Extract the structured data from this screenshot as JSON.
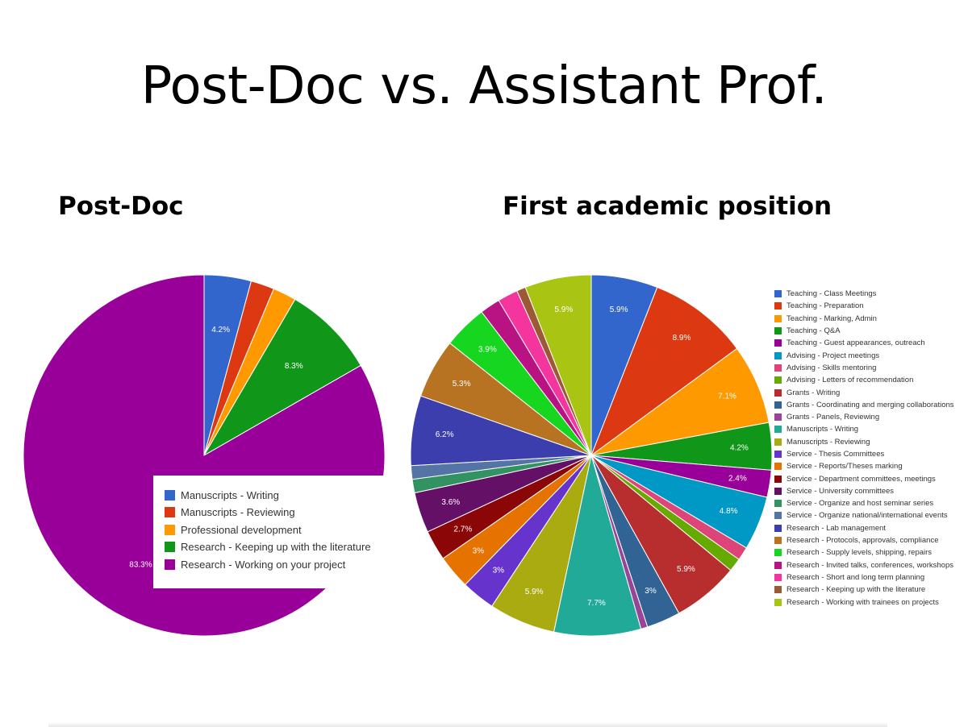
{
  "slide": {
    "title": "Post-Doc vs. Assistant Prof."
  },
  "chart_data": [
    {
      "type": "pie",
      "title": "Post-Doc",
      "legend_position": "bottom-right",
      "labels": [
        "Manuscripts - Writing",
        "Manuscripts - Reviewing",
        "Professional development",
        "Research - Keeping up with the literature",
        "Research - Working on your project"
      ],
      "values": [
        4.2,
        2.1,
        2.1,
        8.3,
        83.3
      ],
      "data_labels": [
        "4.2%",
        "",
        "",
        "8.3%",
        "83.3%"
      ],
      "colors": [
        "#3366cc",
        "#dc3912",
        "#ff9900",
        "#109618",
        "#990099"
      ]
    },
    {
      "type": "pie",
      "title": "First academic position",
      "legend_position": "right",
      "labels": [
        "Teaching - Class Meetings",
        "Teaching - Preparation",
        "Teaching - Marking, Admin",
        "Teaching - Q&A",
        "Teaching - Guest appearances, outreach",
        "Advising - Project meetings",
        "Advising - Skills mentoring",
        "Advising - Letters of recommendation",
        "Grants - Writing",
        "Grants - Coordinating and merging collaborations",
        "Grants - Panels, Reviewing",
        "Manuscripts - Writing",
        "Manuscripts - Reviewing",
        "Service - Thesis Committees",
        "Service - Reports/Theses marking",
        "Service - Department committees, meetings",
        "Service - University committees",
        "Service - Organize and host seminar series",
        "Service - Organize national/international events",
        "Research - Lab management",
        "Research - Protocols, approvals, compliance",
        "Research - Supply levels, shipping, repairs",
        "Research - Invited talks, conferences, workshops",
        "Research - Short and long term planning",
        "Research - Keeping up with the literature",
        "Research - Working with trainees on projects"
      ],
      "values": [
        5.9,
        8.9,
        7.1,
        4.2,
        2.4,
        4.8,
        1.2,
        1.2,
        5.9,
        3.0,
        0.6,
        7.7,
        5.9,
        3.0,
        3.0,
        2.7,
        3.6,
        1.2,
        1.2,
        6.2,
        5.3,
        3.9,
        1.8,
        1.8,
        0.8,
        5.9
      ],
      "data_labels": [
        "5.9%",
        "8.9%",
        "7.1%",
        "4.2%",
        "2.4%",
        "4.8%",
        "",
        "",
        "5.9%",
        "3%",
        "",
        "7.7%",
        "5.9%",
        "3%",
        "3%",
        "2.7%",
        "3.6%",
        "",
        "",
        "6.2%",
        "5.3%",
        "3.9%",
        "",
        "",
        "",
        "5.9%"
      ],
      "colors": [
        "#3366cc",
        "#dc3912",
        "#ff9900",
        "#109618",
        "#990099",
        "#0099c6",
        "#dd4477",
        "#66aa00",
        "#b82e2e",
        "#316395",
        "#994499",
        "#22aa99",
        "#aaaa11",
        "#6633cc",
        "#e67300",
        "#8b0707",
        "#651067",
        "#329262",
        "#5574a6",
        "#3b3eac",
        "#b77322",
        "#16d620",
        "#b91383",
        "#f4359e",
        "#9c5935",
        "#a9c413"
      ]
    }
  ]
}
